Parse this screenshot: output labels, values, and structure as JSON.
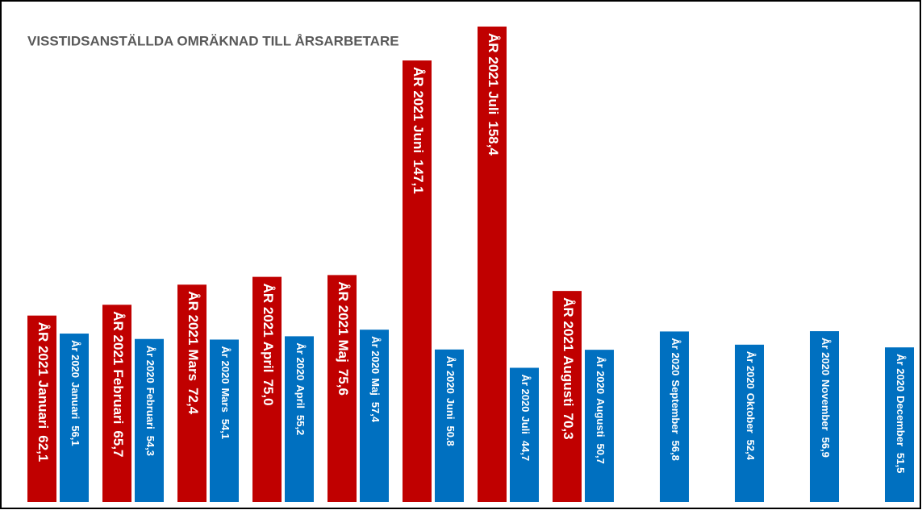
{
  "chart_data": {
    "type": "bar",
    "title": "VISSTIDSANSTÄLLDA OMRÄKNAD TILL ÅRSARBETARE",
    "categories": [
      "Januari",
      "Februari",
      "Mars",
      "April",
      "Maj",
      "Juni",
      "Juli",
      "Augusti",
      "September",
      "Oktober",
      "November",
      "December"
    ],
    "series": [
      {
        "name": "ÅR 2021",
        "color": "#c00000",
        "values": [
          62.1,
          65.7,
          72.4,
          75.0,
          75.6,
          147.1,
          158.4,
          70.3,
          null,
          null,
          null,
          null
        ],
        "value_labels": [
          "62,1",
          "65,7",
          "72,4",
          "75,0",
          "75,6",
          "147,1",
          "158,4",
          "70,3",
          null,
          null,
          null,
          null
        ]
      },
      {
        "name": "År 2020",
        "color": "#0070c0",
        "values": [
          56.1,
          54.3,
          54.1,
          55.2,
          57.4,
          50.8,
          44.7,
          50.7,
          56.8,
          52.4,
          56.9,
          51.5
        ],
        "value_labels": [
          "56,1",
          "54,3",
          "54,1",
          "55,2",
          "57,4",
          "50.8",
          "44,7",
          "50,7",
          "56,8",
          "52,4",
          "56,9",
          "51,5"
        ]
      }
    ]
  }
}
